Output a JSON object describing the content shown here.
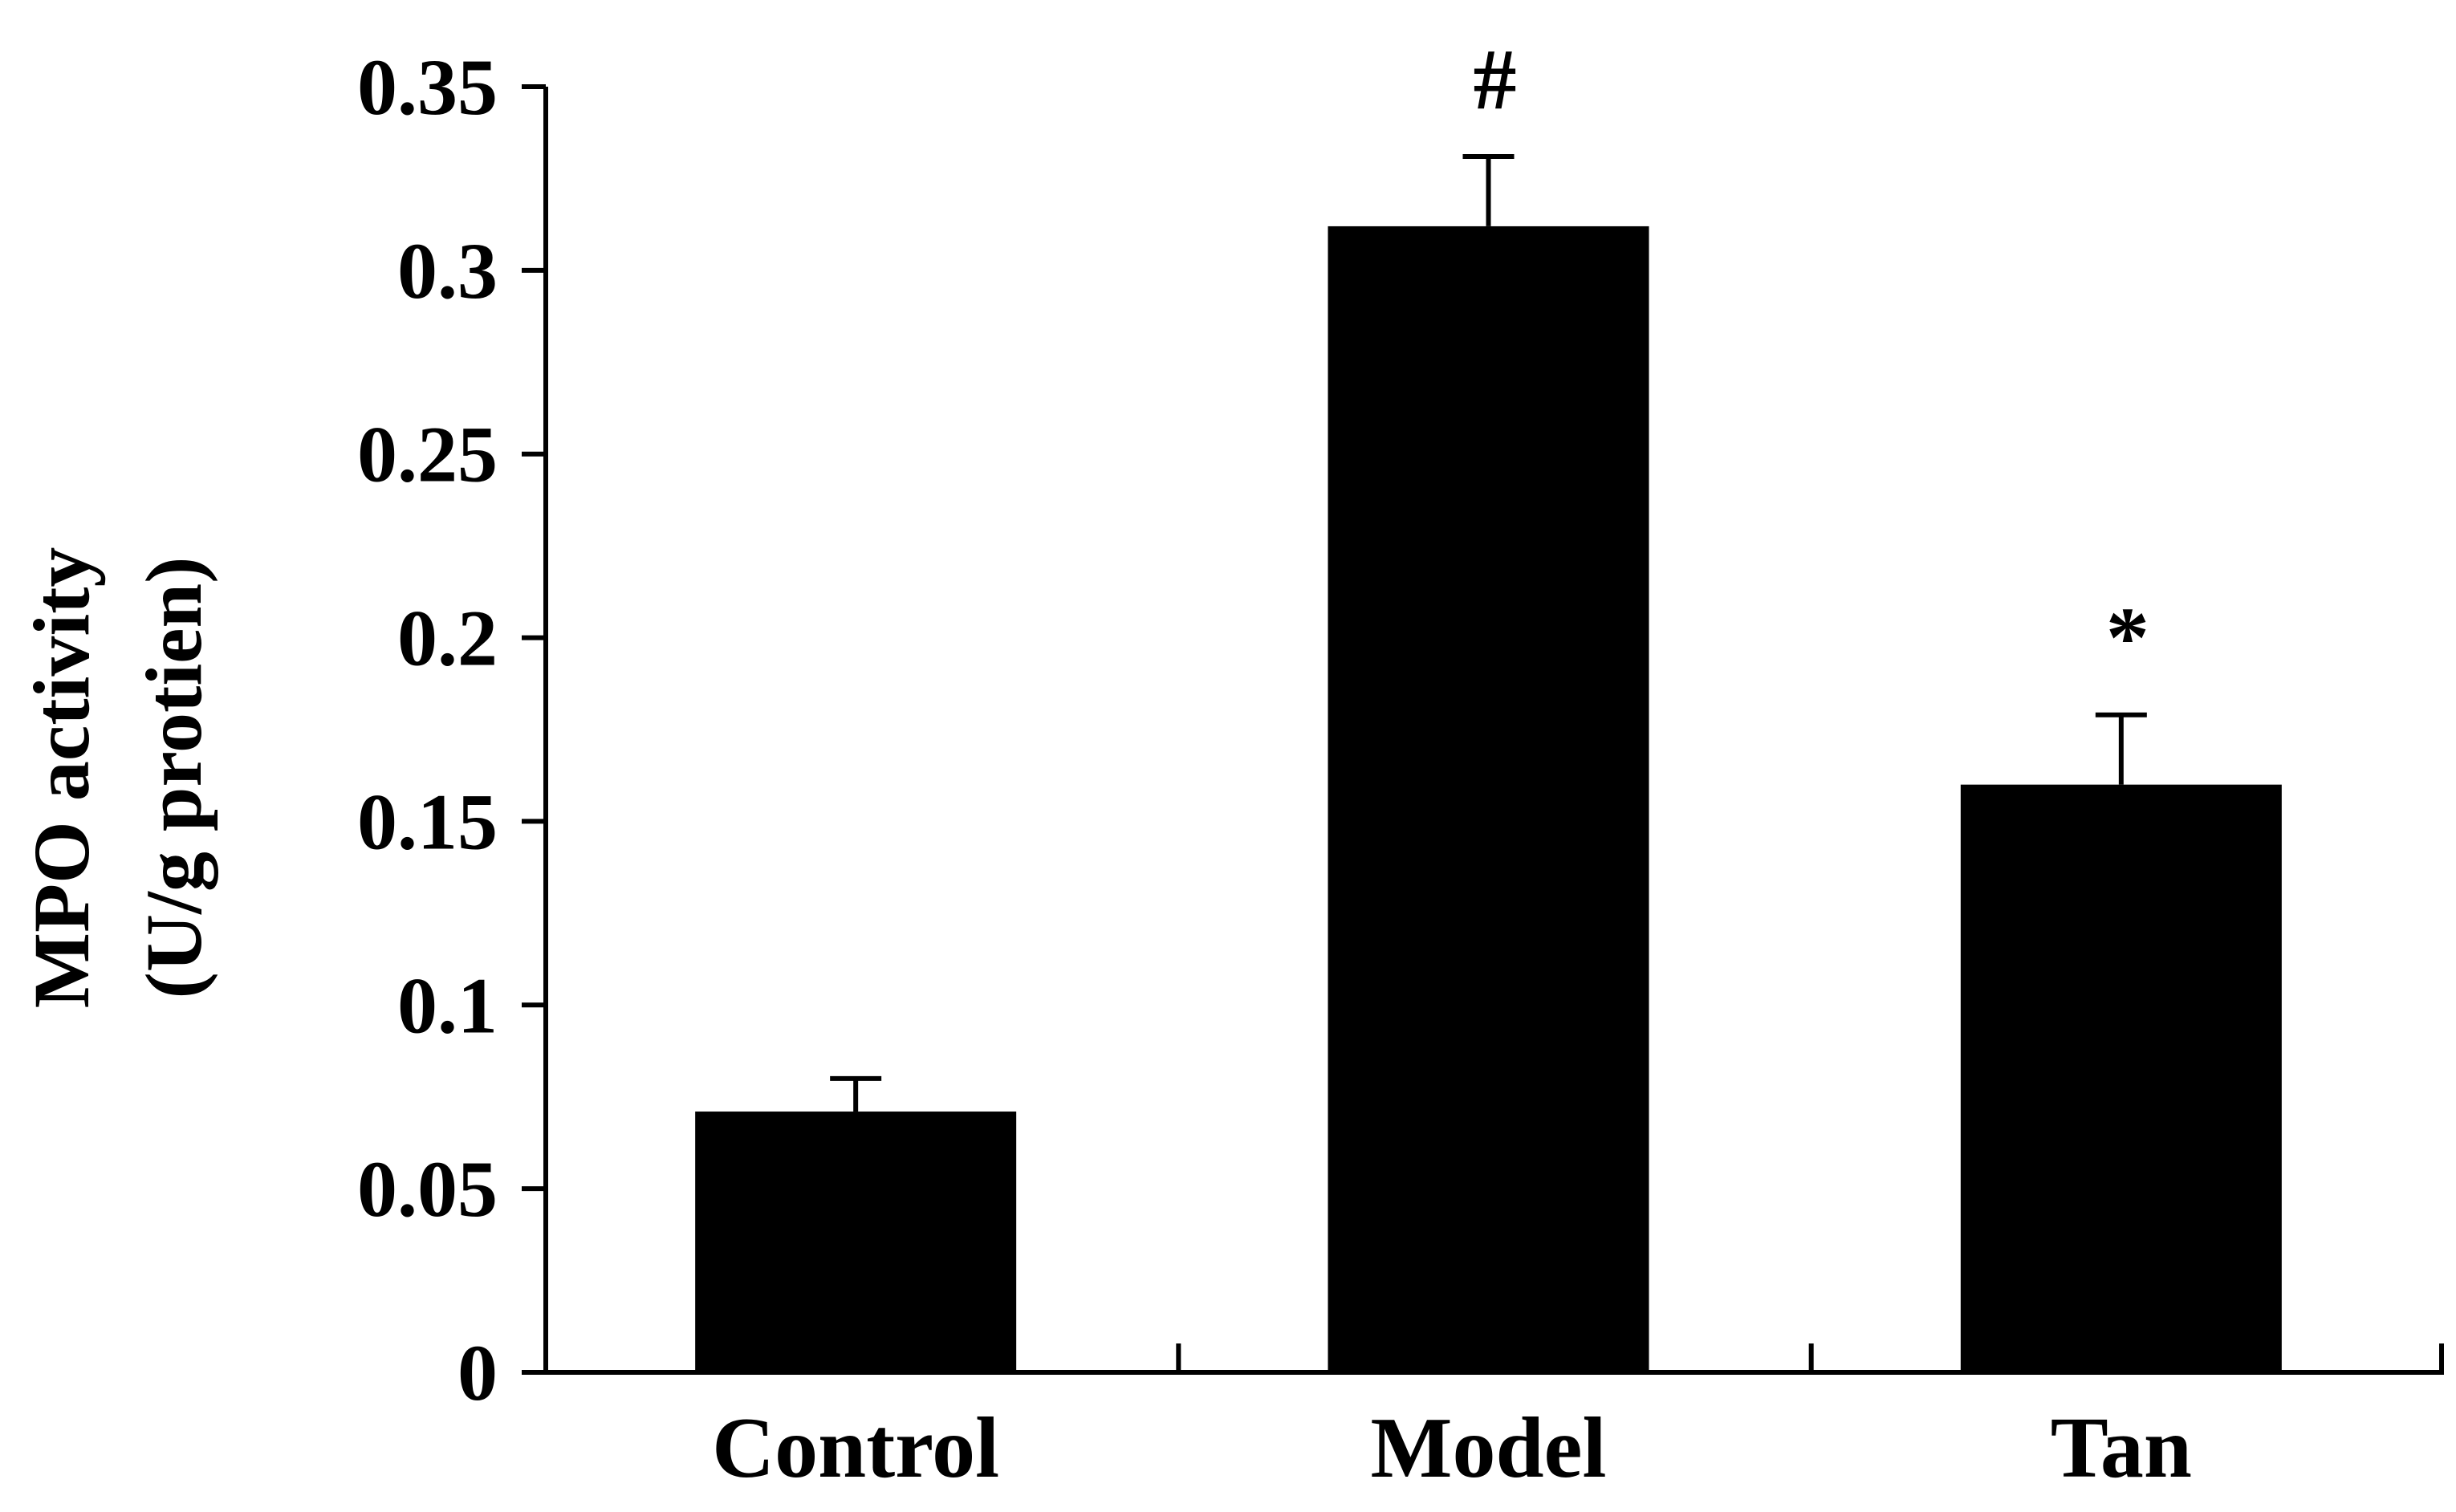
{
  "chart_data": {
    "type": "bar",
    "title": "",
    "xlabel": "",
    "ylabel_lines": [
      "MPO activity",
      "(U/g protien)"
    ],
    "categories": [
      "Control",
      "Model",
      "Tan"
    ],
    "series": [
      {
        "values": [
          0.071,
          0.312,
          0.16
        ],
        "errors": [
          0.009,
          0.019,
          0.019
        ],
        "annotations": [
          "",
          "#",
          "*"
        ]
      }
    ],
    "ylim": [
      0,
      0.35
    ],
    "yticks": [
      {
        "value": 0,
        "label": "0"
      },
      {
        "value": 0.05,
        "label": "0.05"
      },
      {
        "value": 0.1,
        "label": "0.1"
      },
      {
        "value": 0.15,
        "label": "0.15"
      },
      {
        "value": 0.2,
        "label": "0.2"
      },
      {
        "value": 0.25,
        "label": "0.25"
      },
      {
        "value": 0.3,
        "label": "0.3"
      },
      {
        "value": 0.35,
        "label": "0.35"
      }
    ],
    "grid": false,
    "legend": "none",
    "bar_color": "#000000",
    "axis_color": "#000000"
  }
}
